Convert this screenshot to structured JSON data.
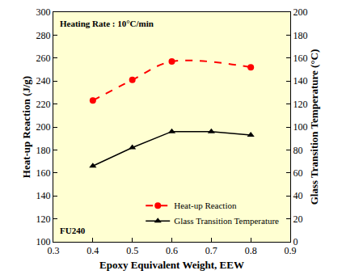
{
  "chart_data": {
    "type": "line",
    "x_label": "Epoxy Equivalent Weight, EEW",
    "y_label": "Heat-up Reaction (J/g)",
    "y2_label": "Glass Transition Temperature (°C)",
    "xlim": [
      0.3,
      0.9
    ],
    "xticks": [
      0.3,
      0.4,
      0.5,
      0.6,
      0.7,
      0.8,
      0.9
    ],
    "ylim": [
      100,
      300
    ],
    "yticks": [
      100,
      120,
      140,
      160,
      180,
      200,
      220,
      240,
      260,
      280,
      300
    ],
    "y2lim": [
      0,
      200
    ],
    "y2ticks": [
      0,
      20,
      40,
      60,
      80,
      100,
      120,
      140,
      160,
      180,
      200
    ],
    "grid": false,
    "legend": "lower right",
    "annotations": [
      "Heating Rate : 10°C/min",
      "FU240"
    ],
    "series": [
      {
        "name": "Heat-up Reaction",
        "color": "#ff0000",
        "marker": "circle",
        "line_style": "dashed",
        "x": [
          0.4,
          0.5,
          0.6,
          0.8
        ],
        "values": [
          223,
          241,
          257,
          252
        ]
      },
      {
        "name": "Glass Transition Temperature",
        "color": "#000000",
        "marker": "triangle-up",
        "line_style": "solid",
        "axis": "y2",
        "x": [
          0.4,
          0.5,
          0.6,
          0.7,
          0.8
        ],
        "values": [
          66,
          82,
          96,
          96,
          93
        ]
      }
    ]
  }
}
